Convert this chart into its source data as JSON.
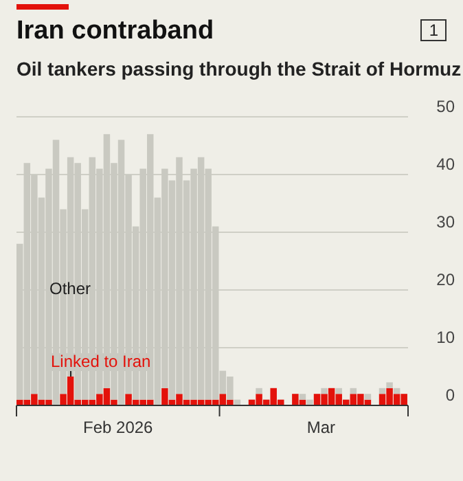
{
  "chart_data": {
    "type": "bar",
    "title": "Iran contraband",
    "subtitle": "Oil tankers passing through the Strait of Hormuz",
    "annotations": [
      "1"
    ],
    "stacked": true,
    "x": [
      "2026-02-01",
      "2026-02-02",
      "2026-02-03",
      "2026-02-04",
      "2026-02-05",
      "2026-02-06",
      "2026-02-07",
      "2026-02-08",
      "2026-02-09",
      "2026-02-10",
      "2026-02-11",
      "2026-02-12",
      "2026-02-13",
      "2026-02-14",
      "2026-02-15",
      "2026-02-16",
      "2026-02-17",
      "2026-02-18",
      "2026-02-19",
      "2026-02-20",
      "2026-02-21",
      "2026-02-22",
      "2026-02-23",
      "2026-02-24",
      "2026-02-25",
      "2026-02-26",
      "2026-02-27",
      "2026-02-28",
      "2026-03-01",
      "2026-03-02",
      "2026-03-03",
      "2026-03-04",
      "2026-03-05",
      "2026-03-06",
      "2026-03-07",
      "2026-03-08",
      "2026-03-09",
      "2026-03-10",
      "2026-03-11",
      "2026-03-12",
      "2026-03-13",
      "2026-03-14",
      "2026-03-15",
      "2026-03-16",
      "2026-03-17",
      "2026-03-18",
      "2026-03-19",
      "2026-03-20",
      "2026-03-21",
      "2026-03-22",
      "2026-03-23",
      "2026-03-24",
      "2026-03-25",
      "2026-03-26"
    ],
    "series": [
      {
        "name": "Linked to Iran",
        "color": "#e3120b",
        "values": [
          1,
          1,
          2,
          1,
          1,
          0,
          2,
          5,
          1,
          1,
          1,
          2,
          3,
          1,
          0,
          2,
          1,
          1,
          1,
          0,
          3,
          1,
          2,
          1,
          1,
          1,
          1,
          1,
          2,
          1,
          0,
          0,
          1,
          2,
          1,
          3,
          1,
          0,
          2,
          1,
          0,
          2,
          2,
          3,
          2,
          1,
          2,
          2,
          1,
          0,
          2,
          3,
          2,
          2
        ]
      },
      {
        "name": "Other",
        "color": "#c9c9c1",
        "values": [
          27,
          41,
          38,
          35,
          40,
          46,
          32,
          38,
          41,
          33,
          42,
          39,
          44,
          41,
          46,
          38,
          30,
          40,
          46,
          36,
          38,
          38,
          41,
          38,
          40,
          42,
          40,
          30,
          4,
          4,
          1,
          0,
          0,
          1,
          0,
          0,
          0,
          0,
          0,
          1,
          1,
          0,
          1,
          0,
          1,
          0,
          1,
          0,
          1,
          0,
          1,
          1,
          1,
          0
        ]
      }
    ],
    "xlim": [
      "2026-02-01",
      "2026-03-27"
    ],
    "xticks": [
      {
        "value": "2026-02-01",
        "label": null
      },
      {
        "value": "2026-02-15",
        "label": "Feb 2026"
      },
      {
        "value": "2026-03-01",
        "label": null
      },
      {
        "value": "2026-03-15",
        "label": "Mar"
      },
      {
        "value": "2026-03-27",
        "label": null
      }
    ],
    "ylim": [
      0,
      50
    ],
    "yticks": [
      0,
      10,
      20,
      30,
      40,
      50
    ],
    "grid": "y",
    "legend": false
  }
}
